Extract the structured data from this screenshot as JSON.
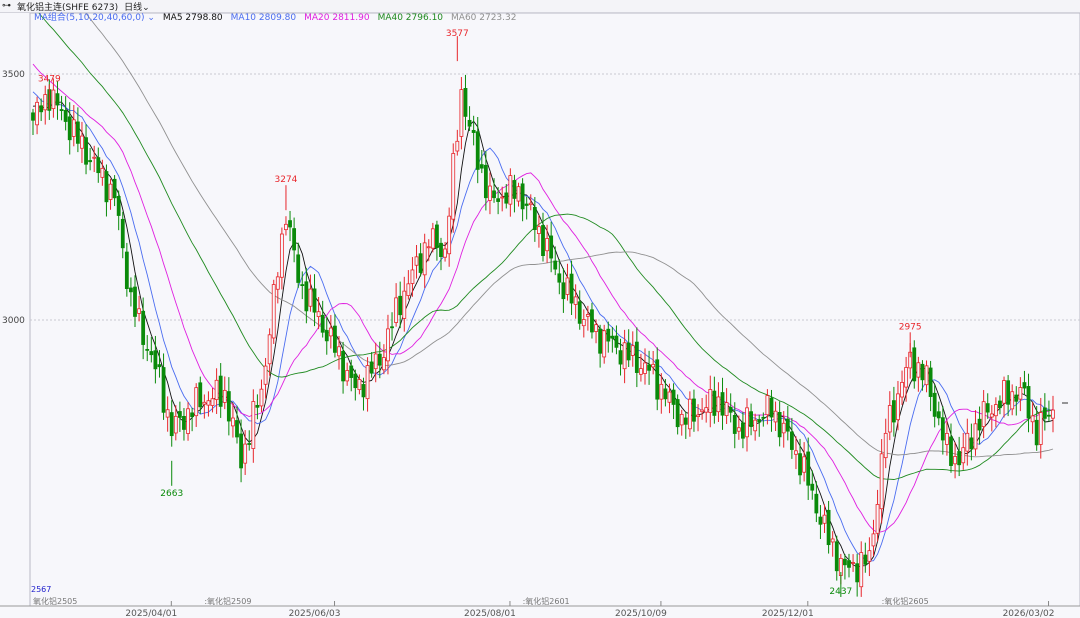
{
  "header": {
    "title": "氧化铝主连(SHFE 6273)",
    "period": "日线"
  },
  "legend": {
    "group": "MA组合(5,10,20,40,60,0)",
    "items": [
      {
        "label": "MA5",
        "value": "2798.80",
        "color": "#111111"
      },
      {
        "label": "MA10",
        "value": "2809.80",
        "color": "#4a6cf0"
      },
      {
        "label": "MA20",
        "value": "2811.90",
        "color": "#e020e0"
      },
      {
        "label": "MA40",
        "value": "2796.10",
        "color": "#1f8a1f"
      },
      {
        "label": "MA60",
        "value": "2723.32",
        "color": "#909090"
      }
    ]
  },
  "chart_data": {
    "type": "candlestick",
    "y_ticks": [
      "3500",
      "3000"
    ],
    "x_ticks": [
      {
        "index": 29,
        "label": "2025/04/01"
      },
      {
        "index": 69,
        "label": "2025/06/03"
      },
      {
        "index": 112,
        "label": "2025/08/01"
      },
      {
        "index": 149,
        "label": "2025/10/09"
      },
      {
        "index": 185,
        "label": "2025/12/01"
      },
      {
        "index": 244,
        "label": "2026/03/02"
      }
    ],
    "key_closes": [
      [
        0,
        3406
      ],
      [
        4,
        3460
      ],
      [
        10,
        3380
      ],
      [
        20,
        3250
      ],
      [
        24,
        3040
      ],
      [
        31,
        2878
      ],
      [
        34,
        2776
      ],
      [
        41,
        2837
      ],
      [
        47,
        2850
      ],
      [
        51,
        2715
      ],
      [
        56,
        2858
      ],
      [
        62,
        3224
      ],
      [
        65,
        3081
      ],
      [
        69,
        3020
      ],
      [
        73,
        2959
      ],
      [
        79,
        2858
      ],
      [
        85,
        2919
      ],
      [
        90,
        3040
      ],
      [
        97,
        3163
      ],
      [
        101,
        3140
      ],
      [
        105,
        3467
      ],
      [
        107,
        3386
      ],
      [
        112,
        3244
      ],
      [
        119,
        3264
      ],
      [
        125,
        3163
      ],
      [
        129,
        3081
      ],
      [
        137,
        2980
      ],
      [
        144,
        2939
      ],
      [
        151,
        2898
      ],
      [
        159,
        2797
      ],
      [
        168,
        2837
      ],
      [
        173,
        2776
      ],
      [
        181,
        2820
      ],
      [
        188,
        2715
      ],
      [
        195,
        2553
      ],
      [
        199,
        2492
      ],
      [
        205,
        2512
      ],
      [
        209,
        2776
      ],
      [
        215,
        2919
      ],
      [
        219,
        2880
      ],
      [
        224,
        2736
      ],
      [
        227,
        2715
      ],
      [
        232,
        2797
      ],
      [
        237,
        2837
      ],
      [
        242,
        2858
      ],
      [
        246,
        2776
      ],
      [
        250,
        2817
      ]
    ],
    "annotations": [
      {
        "index": 4,
        "value": 3479,
        "label": "3479",
        "type": "high"
      },
      {
        "index": 34,
        "value": 2663,
        "label": "2663",
        "type": "low"
      },
      {
        "index": 62,
        "value": 3274,
        "label": "3274",
        "type": "high"
      },
      {
        "index": 104,
        "value": 3577,
        "label": "3577",
        "type": "high"
      },
      {
        "index": 198,
        "value": 2437,
        "label": "2437",
        "type": "low"
      },
      {
        "index": 215,
        "value": 2975,
        "label": "2975",
        "type": "high"
      }
    ],
    "corner_label": "2567",
    "contracts": [
      {
        "index": 0,
        "label": "氧化铝2505"
      },
      {
        "index": 42,
        "label": ":氧化铝2509"
      },
      {
        "index": 120,
        "label": ":氧化铝2601"
      },
      {
        "index": 208,
        "label": ":氧化铝2605"
      }
    ],
    "up_color": "#e8262b",
    "down_color": "#0a8a0a"
  }
}
